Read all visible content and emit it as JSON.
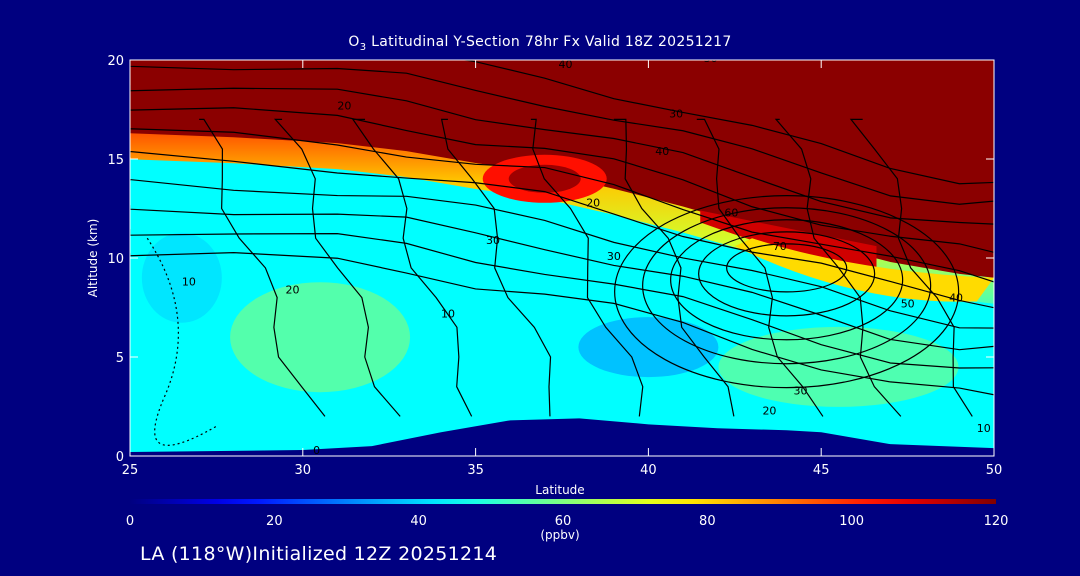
{
  "chart_data": {
    "type": "contour",
    "title": "O3 Latitudinal Y-Section 78hr  Fx Valid 18Z 20251217",
    "title_parts": {
      "species": "O",
      "subscript": "3",
      "rest": " Latitudinal Y-Section 78hr  Fx Valid 18Z 20251217"
    },
    "xlabel": "Latitude",
    "ylabel": "Altitude (km)",
    "xlim": [
      25,
      50
    ],
    "ylim": [
      0,
      20
    ],
    "xticks": [
      "25",
      "30",
      "35",
      "40",
      "45",
      "50"
    ],
    "yticks": [
      "0",
      "5",
      "10",
      "15",
      "20"
    ],
    "colorbar": {
      "ticks": [
        "0",
        "20",
        "40",
        "60",
        "80",
        "100",
        "120"
      ],
      "range": [
        0,
        120
      ],
      "units": "(ppbv)"
    },
    "contour_labels": [
      "0",
      "10",
      "20",
      "10",
      "20",
      "30",
      "40",
      "30",
      "20",
      "30",
      "40",
      "50",
      "60",
      "70",
      "50",
      "40",
      "30",
      "20",
      "10"
    ],
    "terrain_km": [
      [
        25,
        0.2
      ],
      [
        30,
        0.3
      ],
      [
        32,
        0.5
      ],
      [
        34,
        1.2
      ],
      [
        36,
        1.8
      ],
      [
        38,
        1.9
      ],
      [
        40,
        1.6
      ],
      [
        42,
        1.4
      ],
      [
        44,
        1.3
      ],
      [
        45,
        1.2
      ],
      [
        47,
        0.6
      ],
      [
        50,
        0.4
      ]
    ],
    "fill_regions": {
      "tropopause_km": [
        [
          25,
          16.3
        ],
        [
          28,
          16.1
        ],
        [
          31,
          15.8
        ],
        [
          33,
          15.4
        ],
        [
          35,
          14.8
        ],
        [
          37,
          14.3
        ],
        [
          39,
          13.5
        ],
        [
          41,
          12.6
        ],
        [
          43,
          11.6
        ],
        [
          45,
          10.7
        ],
        [
          47,
          9.8
        ],
        [
          49,
          9.2
        ],
        [
          50,
          9.0
        ]
      ],
      "upper_max_ppbv": 120,
      "midlevel_ppbv": 45,
      "ppbv_core_36N_14km": 105,
      "ppbv_tongue_44N_10km": 100
    },
    "colors": {
      "background": "#000080",
      "stratosphere": "#8b0000",
      "midlevel": "#28b8e8"
    }
  },
  "footer": "LA (118°W)Initialized 12Z 20251214"
}
